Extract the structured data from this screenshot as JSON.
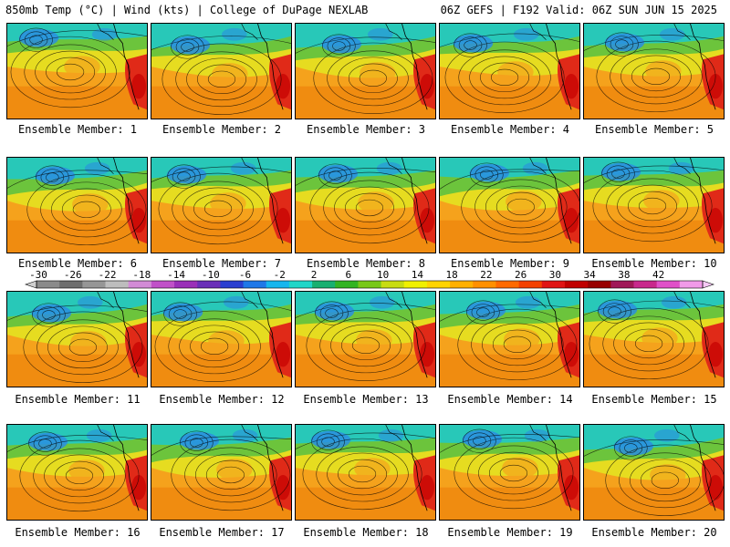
{
  "header": {
    "left": "850mb Temp (°C) | Wind (kts) | College of DuPage NEXLAB",
    "right": "06Z GEFS | F192 Valid: 06Z SUN JUN 15 2025"
  },
  "colorbar": {
    "labels": [
      "-30",
      "-26",
      "-22",
      "-18",
      "-14",
      "-10",
      "-6",
      "-2",
      "2",
      "6",
      "10",
      "14",
      "18",
      "22",
      "26",
      "30",
      "34",
      "38",
      "42"
    ],
    "colors": [
      "#8a8a8a",
      "#6e6e6e",
      "#969696",
      "#bdbdbd",
      "#d28bd6",
      "#c050c8",
      "#9a2fb8",
      "#6a2fb8",
      "#2a3fd0",
      "#1f78e8",
      "#16b6ee",
      "#20d6c8",
      "#18b070",
      "#32b422",
      "#78c818",
      "#c8dc12",
      "#f0f000",
      "#ffd400",
      "#ffb000",
      "#ff9000",
      "#ff6a00",
      "#f44000",
      "#e01414",
      "#c00000",
      "#980000",
      "#a01858",
      "#c8288c",
      "#e050c8",
      "#f09ae8"
    ]
  },
  "map_colors": {
    "ocean_warm": "#f5a21c",
    "south_warm": "#f08c10",
    "mid_yellow": "#e6dc20",
    "mid_green": "#6cc43c",
    "cool_teal": "#28c8b8",
    "cold_blue": "#2a8ee0",
    "hot_red": "#e02a18"
  },
  "panels": [
    {
      "label": "Ensemble Member: 1"
    },
    {
      "label": "Ensemble Member: 2"
    },
    {
      "label": "Ensemble Member: 3"
    },
    {
      "label": "Ensemble Member: 4"
    },
    {
      "label": "Ensemble Member: 5"
    },
    {
      "label": "Ensemble Member: 6"
    },
    {
      "label": "Ensemble Member: 7"
    },
    {
      "label": "Ensemble Member: 8"
    },
    {
      "label": "Ensemble Member: 9"
    },
    {
      "label": "Ensemble Member: 10"
    },
    {
      "label": "Ensemble Member: 11"
    },
    {
      "label": "Ensemble Member: 12"
    },
    {
      "label": "Ensemble Member: 13"
    },
    {
      "label": "Ensemble Member: 14"
    },
    {
      "label": "Ensemble Member: 15"
    },
    {
      "label": "Ensemble Member: 16"
    },
    {
      "label": "Ensemble Member: 17"
    },
    {
      "label": "Ensemble Member: 18"
    },
    {
      "label": "Ensemble Member: 19"
    },
    {
      "label": "Ensemble Member: 20"
    }
  ]
}
